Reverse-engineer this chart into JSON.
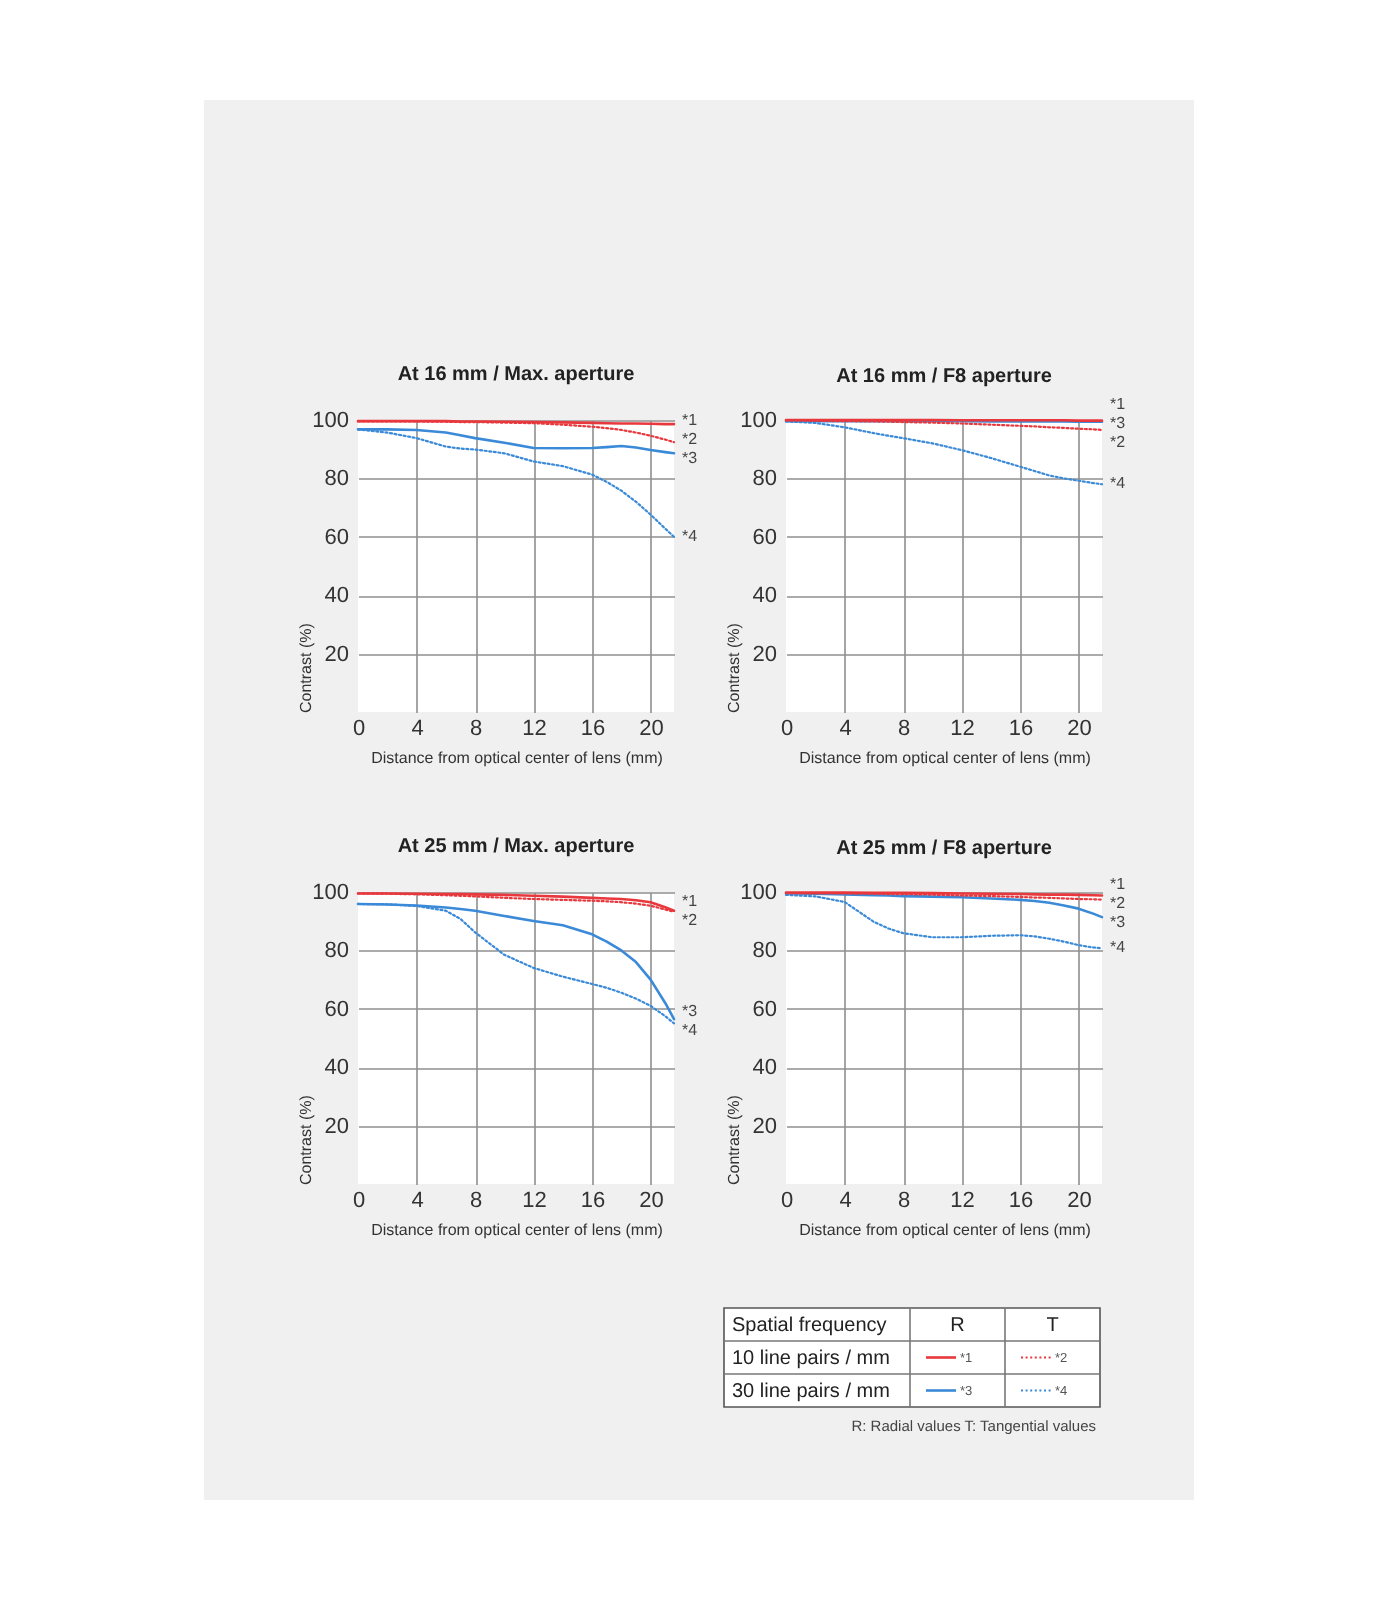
{
  "chart_data": [
    {
      "type": "line",
      "title": "At 16 mm / Max. aperture",
      "xlabel": "Distance from optical center of lens (mm)",
      "ylabel": "Contrast (%)",
      "xlim": [
        0,
        21.6
      ],
      "ylim": [
        0,
        100
      ],
      "xticks": [
        0,
        4,
        8,
        12,
        16,
        20
      ],
      "yticks": [
        20,
        40,
        60,
        80,
        100
      ],
      "grid": true,
      "x": [
        0,
        2,
        4,
        6,
        7,
        8,
        10,
        12,
        14,
        16,
        17,
        18,
        19,
        20,
        21,
        21.6
      ],
      "series": [
        {
          "name": "*1",
          "color": "#e8383d",
          "line_style": "solid",
          "values": [
            99.6,
            99.6,
            99.6,
            99.6,
            99.5,
            99.5,
            99.4,
            99.3,
            99.2,
            99.0,
            98.9,
            98.8,
            98.8,
            98.7,
            98.6,
            98.6
          ]
        },
        {
          "name": "*2",
          "color": "#e8383d",
          "line_style": "dotted",
          "values": [
            99.5,
            99.5,
            99.5,
            99.4,
            99.3,
            99.3,
            99.1,
            98.9,
            98.4,
            97.7,
            97.2,
            96.6,
            95.7,
            94.6,
            93.3,
            92.4
          ]
        },
        {
          "name": "*3",
          "color": "#3b8ad8",
          "line_style": "solid",
          "values": [
            96.8,
            96.8,
            96.6,
            95.7,
            94.8,
            93.8,
            92.2,
            90.4,
            90.3,
            90.4,
            90.7,
            91.1,
            90.6,
            89.7,
            89.0,
            88.6
          ]
        },
        {
          "name": "*4",
          "color": "#3b8ad8",
          "line_style": "dotted",
          "values": [
            96.8,
            95.7,
            93.8,
            90.9,
            90.2,
            89.9,
            88.6,
            85.8,
            84.2,
            81.3,
            78.8,
            75.8,
            72.0,
            67.6,
            62.8,
            60.0
          ]
        }
      ]
    },
    {
      "type": "line",
      "title": "At 16 mm / F8 aperture",
      "xlabel": "Distance from optical center of lens (mm)",
      "ylabel": "Contrast (%)",
      "xlim": [
        0,
        21.6
      ],
      "ylim": [
        0,
        100
      ],
      "xticks": [
        0,
        4,
        8,
        12,
        16,
        20
      ],
      "yticks": [
        20,
        40,
        60,
        80,
        100
      ],
      "grid": true,
      "x": [
        0,
        2,
        4,
        6,
        7,
        8,
        10,
        12,
        14,
        16,
        17,
        18,
        19,
        20,
        21,
        21.6
      ],
      "series": [
        {
          "name": "*1",
          "color": "#e8383d",
          "line_style": "solid",
          "values": [
            100.0,
            100.0,
            100.0,
            100.0,
            100.0,
            100.0,
            100.0,
            99.9,
            99.9,
            99.9,
            99.9,
            99.9,
            99.9,
            99.8,
            99.8,
            99.8
          ]
        },
        {
          "name": "*2",
          "color": "#e8383d",
          "line_style": "dotted",
          "values": [
            99.8,
            99.7,
            99.6,
            99.5,
            99.4,
            99.3,
            99.1,
            98.8,
            98.4,
            98.0,
            97.8,
            97.5,
            97.3,
            97.0,
            96.8,
            96.6
          ]
        },
        {
          "name": "*3",
          "color": "#3b8ad8",
          "line_style": "solid",
          "values": [
            99.6,
            99.6,
            99.6,
            99.6,
            99.6,
            99.6,
            99.6,
            99.6,
            99.5,
            99.5,
            99.5,
            99.5,
            99.5,
            99.4,
            99.4,
            99.4
          ]
        },
        {
          "name": "*4",
          "color": "#3b8ad8",
          "line_style": "dotted",
          "values": [
            99.5,
            99.0,
            97.5,
            95.5,
            94.6,
            93.8,
            92.0,
            89.7,
            87.0,
            84.0,
            82.5,
            81.0,
            80.0,
            79.2,
            78.4,
            78.0
          ]
        }
      ]
    },
    {
      "type": "line",
      "title": "At 25 mm / Max. aperture",
      "xlabel": "Distance from optical center of lens (mm)",
      "ylabel": "Contrast (%)",
      "xlim": [
        0,
        21.6
      ],
      "ylim": [
        0,
        100
      ],
      "xticks": [
        0,
        4,
        8,
        12,
        16,
        20
      ],
      "yticks": [
        20,
        40,
        60,
        80,
        100
      ],
      "grid": true,
      "x": [
        0,
        2,
        4,
        6,
        7,
        8,
        10,
        12,
        14,
        16,
        17,
        18,
        19,
        20,
        21,
        21.6
      ],
      "series": [
        {
          "name": "*1",
          "color": "#e8383d",
          "line_style": "solid",
          "values": [
            99.5,
            99.5,
            99.4,
            99.3,
            99.3,
            99.2,
            99.0,
            98.7,
            98.4,
            98.0,
            97.8,
            97.6,
            97.2,
            96.5,
            94.8,
            93.6
          ]
        },
        {
          "name": "*2",
          "color": "#e8383d",
          "line_style": "dotted",
          "values": [
            99.5,
            99.4,
            99.2,
            98.9,
            98.7,
            98.5,
            98.0,
            97.6,
            97.3,
            97.0,
            96.8,
            96.5,
            96.0,
            95.3,
            94.0,
            93.2
          ]
        },
        {
          "name": "*3",
          "color": "#3b8ad8",
          "line_style": "solid",
          "values": [
            95.9,
            95.7,
            95.4,
            94.7,
            94.2,
            93.6,
            91.8,
            90.1,
            88.6,
            85.5,
            83.0,
            80.0,
            76.0,
            70.0,
            62.0,
            56.5
          ]
        },
        {
          "name": "*4",
          "color": "#3b8ad8",
          "line_style": "dotted",
          "values": [
            95.9,
            95.8,
            95.2,
            93.6,
            90.8,
            86.2,
            78.5,
            74.0,
            71.0,
            68.5,
            67.2,
            65.5,
            63.5,
            61.0,
            57.5,
            55.0
          ]
        }
      ]
    },
    {
      "type": "line",
      "title": "At 25 mm / F8 aperture",
      "xlabel": "Distance from optical center of lens (mm)",
      "ylabel": "Contrast (%)",
      "xlim": [
        0,
        21.6
      ],
      "ylim": [
        0,
        100
      ],
      "xticks": [
        0,
        4,
        8,
        12,
        16,
        20
      ],
      "yticks": [
        20,
        40,
        60,
        80,
        100
      ],
      "grid": true,
      "x": [
        0,
        2,
        4,
        6,
        7,
        8,
        10,
        12,
        14,
        16,
        17,
        18,
        19,
        20,
        21,
        21.6
      ],
      "series": [
        {
          "name": "*1",
          "color": "#e8383d",
          "line_style": "solid",
          "values": [
            99.8,
            99.8,
            99.8,
            99.7,
            99.7,
            99.7,
            99.6,
            99.5,
            99.4,
            99.3,
            99.2,
            99.1,
            99.1,
            99.0,
            98.9,
            98.8
          ]
        },
        {
          "name": "*2",
          "color": "#e8383d",
          "line_style": "dotted",
          "values": [
            99.6,
            99.5,
            99.5,
            99.4,
            99.3,
            99.3,
            99.1,
            98.8,
            98.6,
            98.3,
            98.1,
            98.0,
            97.8,
            97.6,
            97.5,
            97.4
          ]
        },
        {
          "name": "*3",
          "color": "#3b8ad8",
          "line_style": "solid",
          "values": [
            99.5,
            99.4,
            99.2,
            98.9,
            98.8,
            98.6,
            98.4,
            98.2,
            97.8,
            97.3,
            96.9,
            96.3,
            95.4,
            94.3,
            92.6,
            91.4
          ]
        },
        {
          "name": "*4",
          "color": "#3b8ad8",
          "line_style": "dotted",
          "values": [
            99.0,
            98.5,
            96.6,
            89.8,
            87.5,
            85.9,
            84.5,
            84.5,
            85.0,
            85.2,
            84.8,
            84.0,
            83.0,
            81.8,
            81.0,
            80.7
          ]
        }
      ]
    },
    {
      "type": "other",
      "legend_title": "Spatial frequency",
      "categories": [
        "R",
        "T"
      ],
      "y_categories": [
        "10 line pairs / mm",
        "30 line pairs / mm"
      ],
      "cell_labels": [
        [
          "*1",
          "*2"
        ],
        [
          "*3",
          "*4"
        ]
      ],
      "annotations": [
        "R: Radial values  T: Tangential values"
      ]
    }
  ]
}
